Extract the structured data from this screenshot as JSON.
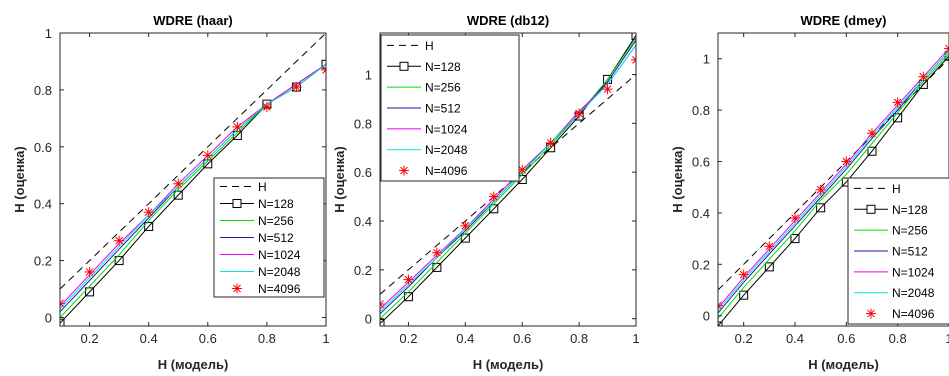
{
  "chart_data": [
    {
      "type": "line",
      "title": "WDRE (haar)",
      "xlabel": "H (модель)",
      "ylabel": "H (оценка)",
      "xlim": [
        0.1,
        1.0
      ],
      "ylim": [
        -0.03,
        1.0
      ],
      "xticks": [
        0.2,
        0.4,
        0.6,
        0.8,
        1
      ],
      "xtick_labels": [
        "0.2",
        "0.4",
        "0.6",
        "0.8",
        "1"
      ],
      "yticks": [
        0,
        0.2,
        0.4,
        0.6,
        0.8,
        1
      ],
      "ytick_labels": [
        "0",
        "0.2",
        "0.4",
        "0.6",
        "0.8",
        "1"
      ],
      "grid": false,
      "legend_position": "bottom-right",
      "x": [
        0.1,
        0.2,
        0.3,
        0.4,
        0.5,
        0.6,
        0.7,
        0.8,
        0.9,
        1.0
      ],
      "series": [
        {
          "name": "H",
          "color": "#000000",
          "style": "dashed",
          "marker": "none",
          "values": [
            0.1,
            0.2,
            0.3,
            0.4,
            0.5,
            0.6,
            0.7,
            0.8,
            0.9,
            1.0
          ]
        },
        {
          "name": "N=128",
          "color": "#000000",
          "style": "solid",
          "marker": "square",
          "values": [
            -0.02,
            0.09,
            0.2,
            0.32,
            0.43,
            0.54,
            0.64,
            0.75,
            0.81,
            0.89
          ]
        },
        {
          "name": "N=256",
          "color": "#00dd00",
          "style": "solid",
          "marker": "none",
          "values": [
            0.0,
            0.11,
            0.22,
            0.34,
            0.45,
            0.55,
            0.65,
            0.75,
            0.81,
            0.89
          ]
        },
        {
          "name": "N=512",
          "color": "#1a1aa8",
          "style": "solid",
          "marker": "none",
          "values": [
            0.02,
            0.13,
            0.24,
            0.35,
            0.46,
            0.56,
            0.66,
            0.75,
            0.82,
            0.89
          ]
        },
        {
          "name": "N=1024",
          "color": "#ee00ee",
          "style": "solid",
          "marker": "none",
          "values": [
            0.04,
            0.15,
            0.26,
            0.36,
            0.47,
            0.57,
            0.67,
            0.75,
            0.82,
            0.89
          ]
        },
        {
          "name": "N=2048",
          "color": "#00e5e5",
          "style": "solid",
          "marker": "none",
          "values": [
            0.03,
            0.14,
            0.25,
            0.36,
            0.46,
            0.56,
            0.66,
            0.75,
            0.81,
            0.89
          ]
        },
        {
          "name": "N=4096",
          "color": "#ff0000",
          "style": "none",
          "marker": "asterisk",
          "values": [
            0.05,
            0.16,
            0.27,
            0.37,
            0.47,
            0.57,
            0.67,
            0.74,
            0.81,
            0.87
          ]
        }
      ]
    },
    {
      "type": "line",
      "title": "WDRE (db12)",
      "xlabel": "H (модель)",
      "ylabel": "H (оценка)",
      "xlim": [
        0.1,
        1.0
      ],
      "ylim": [
        -0.03,
        1.17
      ],
      "xticks": [
        0.2,
        0.4,
        0.6,
        0.8,
        1
      ],
      "xtick_labels": [
        "0.2",
        "0.4",
        "0.6",
        "0.8",
        "1"
      ],
      "yticks": [
        0,
        0.2,
        0.4,
        0.6,
        0.8,
        1
      ],
      "ytick_labels": [
        "0",
        "0.2",
        "0.4",
        "0.6",
        "0.8",
        "1"
      ],
      "grid": false,
      "legend_position": "top-left",
      "x": [
        0.1,
        0.2,
        0.3,
        0.4,
        0.5,
        0.6,
        0.7,
        0.8,
        0.9,
        1.0
      ],
      "series": [
        {
          "name": "H",
          "color": "#000000",
          "style": "dashed",
          "marker": "none",
          "values": [
            0.1,
            0.2,
            0.3,
            0.4,
            0.5,
            0.6,
            0.7,
            0.8,
            0.9,
            1.0
          ]
        },
        {
          "name": "N=128",
          "color": "#000000",
          "style": "solid",
          "marker": "square",
          "values": [
            -0.02,
            0.09,
            0.21,
            0.33,
            0.45,
            0.57,
            0.7,
            0.83,
            0.98,
            1.16
          ]
        },
        {
          "name": "N=256",
          "color": "#00dd00",
          "style": "solid",
          "marker": "none",
          "values": [
            0.0,
            0.11,
            0.23,
            0.35,
            0.47,
            0.59,
            0.71,
            0.84,
            0.98,
            1.15
          ]
        },
        {
          "name": "N=512",
          "color": "#1a1aa8",
          "style": "solid",
          "marker": "none",
          "values": [
            0.02,
            0.13,
            0.25,
            0.36,
            0.48,
            0.6,
            0.72,
            0.84,
            0.97,
            1.14
          ]
        },
        {
          "name": "N=1024",
          "color": "#ee00ee",
          "style": "solid",
          "marker": "none",
          "values": [
            0.04,
            0.15,
            0.26,
            0.37,
            0.49,
            0.61,
            0.72,
            0.85,
            0.96,
            1.12
          ]
        },
        {
          "name": "N=2048",
          "color": "#00e5e5",
          "style": "solid",
          "marker": "none",
          "values": [
            0.03,
            0.14,
            0.25,
            0.37,
            0.48,
            0.6,
            0.72,
            0.84,
            0.96,
            1.12
          ]
        },
        {
          "name": "N=4096",
          "color": "#ff0000",
          "style": "none",
          "marker": "asterisk",
          "values": [
            0.06,
            0.16,
            0.27,
            0.38,
            0.5,
            0.61,
            0.72,
            0.84,
            0.94,
            1.06
          ]
        }
      ]
    },
    {
      "type": "line",
      "title": "WDRE (dmey)",
      "xlabel": "H (модель)",
      "ylabel": "H (оценка)",
      "xlim": [
        0.1,
        1.0
      ],
      "ylim": [
        -0.04,
        1.1
      ],
      "xticks": [
        0.2,
        0.4,
        0.6,
        0.8,
        1
      ],
      "xtick_labels": [
        "0.2",
        "0.4",
        "0.6",
        "0.8",
        "1"
      ],
      "yticks": [
        0,
        0.2,
        0.4,
        0.6,
        0.8,
        1
      ],
      "ytick_labels": [
        "0",
        "0.2",
        "0.4",
        "0.6",
        "0.8",
        "1"
      ],
      "grid": false,
      "legend_position": "bottom-right",
      "x": [
        0.1,
        0.2,
        0.3,
        0.4,
        0.5,
        0.6,
        0.7,
        0.8,
        0.9,
        1.0
      ],
      "series": [
        {
          "name": "H",
          "color": "#000000",
          "style": "dashed",
          "marker": "none",
          "values": [
            0.1,
            0.2,
            0.3,
            0.4,
            0.5,
            0.6,
            0.7,
            0.8,
            0.9,
            1.0
          ]
        },
        {
          "name": "N=128",
          "color": "#000000",
          "style": "solid",
          "marker": "square",
          "values": [
            -0.04,
            0.08,
            0.19,
            0.3,
            0.42,
            0.52,
            0.64,
            0.77,
            0.9,
            1.01
          ]
        },
        {
          "name": "N=256",
          "color": "#00dd00",
          "style": "solid",
          "marker": "none",
          "values": [
            -0.01,
            0.11,
            0.22,
            0.33,
            0.45,
            0.55,
            0.67,
            0.79,
            0.91,
            1.02
          ]
        },
        {
          "name": "N=512",
          "color": "#1a1aa8",
          "style": "solid",
          "marker": "none",
          "values": [
            0.01,
            0.13,
            0.24,
            0.35,
            0.46,
            0.57,
            0.69,
            0.8,
            0.92,
            1.03
          ]
        },
        {
          "name": "N=1024",
          "color": "#ee00ee",
          "style": "solid",
          "marker": "none",
          "values": [
            0.03,
            0.15,
            0.26,
            0.37,
            0.48,
            0.59,
            0.71,
            0.82,
            0.93,
            1.04
          ]
        },
        {
          "name": "N=2048",
          "color": "#00e5e5",
          "style": "solid",
          "marker": "none",
          "values": [
            0.02,
            0.14,
            0.25,
            0.36,
            0.47,
            0.58,
            0.7,
            0.81,
            0.92,
            1.03
          ]
        },
        {
          "name": "N=4096",
          "color": "#ff0000",
          "style": "none",
          "marker": "asterisk",
          "values": [
            0.04,
            0.16,
            0.27,
            0.38,
            0.49,
            0.6,
            0.71,
            0.83,
            0.93,
            1.04
          ]
        }
      ]
    }
  ]
}
